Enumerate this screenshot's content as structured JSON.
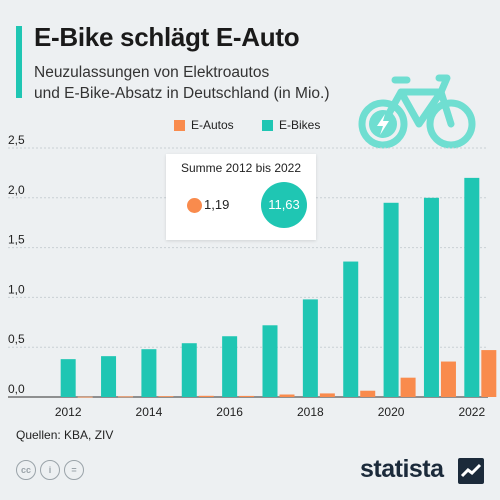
{
  "header": {
    "title": "E-Bike schlägt E-Auto",
    "subtitle_line1": "Neuzulassungen von Elektroautos",
    "subtitle_line2": "und E-Bike-Absatz in Deutschland (in Mio.)"
  },
  "legend": {
    "items": [
      {
        "label": "E-Autos",
        "color": "#f98b4d"
      },
      {
        "label": "E-Bikes",
        "color": "#1fc6b3"
      }
    ],
    "placement": "top-right"
  },
  "summary": {
    "title": "Summe 2012 bis 2022",
    "autos_value": "1,19",
    "bikes_value": "11,63"
  },
  "chart_data": {
    "type": "bar",
    "categories": [
      "2012",
      "2013",
      "2014",
      "2015",
      "2016",
      "2017",
      "2018",
      "2019",
      "2020",
      "2021",
      "2022"
    ],
    "x_tick_labels": [
      "2012",
      "",
      "2014",
      "",
      "2016",
      "",
      "2018",
      "",
      "2020",
      "",
      "2022"
    ],
    "series": [
      {
        "name": "E-Autos",
        "color": "#f98b4d",
        "values": [
          0.003,
          0.006,
          0.008,
          0.012,
          0.011,
          0.025,
          0.036,
          0.063,
          0.194,
          0.356,
          0.471
        ]
      },
      {
        "name": "E-Bikes",
        "color": "#1fc6b3",
        "values": [
          0.38,
          0.41,
          0.48,
          0.54,
          0.61,
          0.72,
          0.98,
          1.36,
          1.95,
          2.0,
          2.2
        ]
      }
    ],
    "y_ticks": [
      "0,0",
      "0,5",
      "1,0",
      "1,5",
      "2,0",
      "2,5"
    ],
    "ylim": [
      0,
      2.5
    ],
    "grid": true
  },
  "footer": {
    "source": "Quellen: KBA, ZIV",
    "brand": "statista",
    "icons": [
      "cc-icon",
      "person-icon",
      "equals-icon"
    ]
  }
}
